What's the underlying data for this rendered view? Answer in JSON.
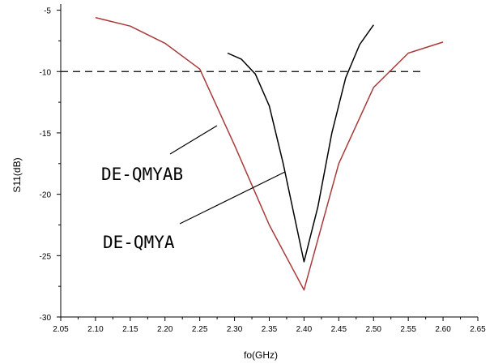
{
  "chart_data": {
    "type": "line",
    "xlabel": "fo(GHz)",
    "ylabel": "S11(dB)",
    "xlim": [
      2.05,
      2.65
    ],
    "ylim": [
      -30,
      -4.5
    ],
    "xticks": [
      "2.05",
      "2.10",
      "2.15",
      "2.20",
      "2.25",
      "2.30",
      "2.35",
      "2.40",
      "2.45",
      "2.50",
      "2.55",
      "2.60",
      "2.65"
    ],
    "yticks": [
      "-5",
      "-10",
      "-15",
      "-20",
      "-25",
      "-30"
    ],
    "grid": false,
    "reference_line": {
      "y": -10,
      "x_range": [
        2.05,
        2.57
      ],
      "style": "dashed"
    },
    "series": [
      {
        "name": "DE-QMYAB",
        "color": "#a83a3a",
        "x": [
          2.1,
          2.15,
          2.2,
          2.25,
          2.3,
          2.35,
          2.4,
          2.45,
          2.5,
          2.55,
          2.6
        ],
        "y": [
          -5.6,
          -6.3,
          -7.7,
          -9.8,
          -16.0,
          -22.5,
          -27.8,
          -17.5,
          -11.3,
          -8.5,
          -7.6
        ]
      },
      {
        "name": "DE-QMYA",
        "color": "#000000",
        "x": [
          2.29,
          2.31,
          2.33,
          2.35,
          2.37,
          2.4,
          2.42,
          2.44,
          2.46,
          2.48,
          2.5
        ],
        "y": [
          -8.5,
          -9.0,
          -10.2,
          -12.8,
          -17.5,
          -25.5,
          -21.0,
          -15.0,
          -10.5,
          -7.8,
          -6.2
        ]
      }
    ],
    "annotations": [
      {
        "text": "DE-QMYAB",
        "series": "DE-QMYAB"
      },
      {
        "text": "DE-QMYA",
        "series": "DE-QMYA"
      }
    ]
  }
}
